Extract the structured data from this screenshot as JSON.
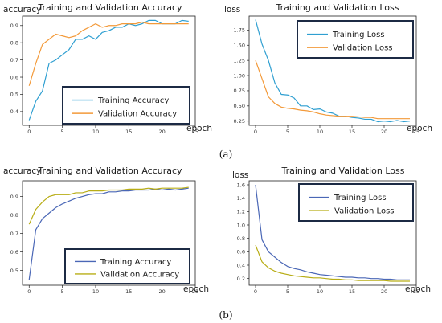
{
  "colors": {
    "fig_a_train": "#2f9fd1",
    "fig_a_val": "#f39a3a",
    "fig_b_train": "#4a67b6",
    "fig_b_val": "#b8ad16",
    "legend_border": "#1c2a44"
  },
  "captions": [
    "(a)",
    "(b)"
  ],
  "chart_data": [
    {
      "id": "a-acc",
      "type": "line",
      "title": "Training and Validation Accuracy",
      "ylabel": "accuracy",
      "xlabel": "epoch",
      "xlim": [
        -1,
        25
      ],
      "ylim": [
        0.32,
        0.955
      ],
      "xticks": [
        0,
        5,
        10,
        15,
        20,
        25
      ],
      "yticks": [
        0.4,
        0.5,
        0.6,
        0.7,
        0.8,
        0.9
      ],
      "ytick_labels": [
        "0.4",
        "0.5",
        "0.6",
        "0.7",
        "0.8",
        "0.9"
      ],
      "legend_position": "bottom-right",
      "x": [
        0,
        1,
        2,
        3,
        4,
        5,
        6,
        7,
        8,
        9,
        10,
        11,
        12,
        13,
        14,
        15,
        16,
        17,
        18,
        19,
        20,
        21,
        22,
        23,
        24
      ],
      "series": [
        {
          "name": "Training Accuracy",
          "color_key": "fig_a_train",
          "values": [
            0.35,
            0.46,
            0.52,
            0.68,
            0.7,
            0.73,
            0.76,
            0.82,
            0.82,
            0.84,
            0.82,
            0.86,
            0.87,
            0.89,
            0.89,
            0.91,
            0.9,
            0.91,
            0.93,
            0.93,
            0.91,
            0.91,
            0.91,
            0.93,
            0.925
          ]
        },
        {
          "name": "Validation Accuracy",
          "color_key": "fig_a_val",
          "values": [
            0.55,
            0.68,
            0.79,
            0.82,
            0.85,
            0.84,
            0.83,
            0.84,
            0.87,
            0.89,
            0.91,
            0.89,
            0.9,
            0.9,
            0.91,
            0.91,
            0.91,
            0.92,
            0.91,
            0.91,
            0.91,
            0.91,
            0.91,
            0.91,
            0.91
          ]
        }
      ]
    },
    {
      "id": "a-loss",
      "type": "line",
      "title": "Training and Validation Loss",
      "ylabel": "loss",
      "xlabel": "epoch",
      "xlim": [
        -1,
        25
      ],
      "ylim": [
        0.18,
        1.98
      ],
      "xticks": [
        0,
        5,
        10,
        15,
        20,
        25
      ],
      "yticks": [
        0.25,
        0.5,
        0.75,
        1.0,
        1.25,
        1.5,
        1.75
      ],
      "ytick_labels": [
        "0.25",
        "0.50",
        "0.75",
        "1.00",
        "1.25",
        "1.50",
        "1.75"
      ],
      "legend_position": "top-right",
      "x": [
        0,
        1,
        2,
        3,
        4,
        5,
        6,
        7,
        8,
        9,
        10,
        11,
        12,
        13,
        14,
        15,
        16,
        17,
        18,
        19,
        20,
        21,
        22,
        23,
        24
      ],
      "series": [
        {
          "name": "Training Loss",
          "color_key": "fig_a_train",
          "values": [
            1.92,
            1.52,
            1.25,
            0.88,
            0.69,
            0.68,
            0.63,
            0.5,
            0.5,
            0.44,
            0.45,
            0.4,
            0.38,
            0.33,
            0.33,
            0.31,
            0.3,
            0.28,
            0.28,
            0.24,
            0.25,
            0.24,
            0.26,
            0.24,
            0.25
          ]
        },
        {
          "name": "Validation Loss",
          "color_key": "fig_a_val",
          "values": [
            1.25,
            0.95,
            0.65,
            0.54,
            0.48,
            0.46,
            0.45,
            0.43,
            0.42,
            0.4,
            0.37,
            0.35,
            0.34,
            0.33,
            0.33,
            0.33,
            0.32,
            0.31,
            0.31,
            0.29,
            0.29,
            0.29,
            0.29,
            0.29,
            0.29
          ]
        }
      ]
    },
    {
      "id": "b-acc",
      "type": "line",
      "title": "Training and Validation Accuracy",
      "ylabel": "accuracy",
      "xlabel": "epoch",
      "xlim": [
        -1,
        25
      ],
      "ylim": [
        0.42,
        0.985
      ],
      "xticks": [
        0,
        5,
        10,
        15,
        20,
        25
      ],
      "yticks": [
        0.5,
        0.6,
        0.7,
        0.8,
        0.9
      ],
      "ytick_labels": [
        "0.5",
        "0.6",
        "0.7",
        "0.8",
        "0.9"
      ],
      "legend_position": "bottom-right",
      "x": [
        0,
        1,
        2,
        3,
        4,
        5,
        6,
        7,
        8,
        9,
        10,
        11,
        12,
        13,
        14,
        15,
        16,
        17,
        18,
        19,
        20,
        21,
        22,
        23,
        24
      ],
      "series": [
        {
          "name": "Training Accuracy",
          "color_key": "fig_b_train",
          "values": [
            0.45,
            0.72,
            0.78,
            0.81,
            0.84,
            0.86,
            0.875,
            0.89,
            0.9,
            0.91,
            0.915,
            0.915,
            0.925,
            0.925,
            0.93,
            0.93,
            0.935,
            0.935,
            0.935,
            0.94,
            0.935,
            0.94,
            0.935,
            0.94,
            0.945
          ]
        },
        {
          "name": "Validation Accuracy",
          "color_key": "fig_b_val",
          "values": [
            0.75,
            0.83,
            0.87,
            0.9,
            0.91,
            0.91,
            0.91,
            0.92,
            0.92,
            0.93,
            0.93,
            0.93,
            0.935,
            0.935,
            0.935,
            0.94,
            0.94,
            0.94,
            0.945,
            0.94,
            0.945,
            0.945,
            0.945,
            0.945,
            0.95
          ]
        }
      ]
    },
    {
      "id": "b-loss",
      "type": "line",
      "title": "Training and Validation Loss",
      "ylabel": "loss",
      "xlabel": "epoch",
      "xlim": [
        -1,
        25
      ],
      "ylim": [
        0.1,
        1.66
      ],
      "xticks": [
        0,
        5,
        10,
        15,
        20,
        25
      ],
      "yticks": [
        0.2,
        0.4,
        0.6,
        0.8,
        1.0,
        1.2,
        1.4,
        1.6
      ],
      "ytick_labels": [
        "0.2",
        "0.4",
        "0.6",
        "0.8",
        "1.0",
        "1.2",
        "1.4",
        "1.6"
      ],
      "legend_position": "top-right",
      "x": [
        0,
        1,
        2,
        3,
        4,
        5,
        6,
        7,
        8,
        9,
        10,
        11,
        12,
        13,
        14,
        15,
        16,
        17,
        18,
        19,
        20,
        21,
        22,
        23,
        24
      ],
      "series": [
        {
          "name": "Training Loss",
          "color_key": "fig_b_train",
          "values": [
            1.6,
            0.78,
            0.6,
            0.52,
            0.44,
            0.38,
            0.35,
            0.33,
            0.3,
            0.28,
            0.26,
            0.25,
            0.24,
            0.23,
            0.22,
            0.22,
            0.21,
            0.21,
            0.2,
            0.2,
            0.19,
            0.19,
            0.18,
            0.18,
            0.18
          ]
        },
        {
          "name": "Validation Loss",
          "color_key": "fig_b_val",
          "values": [
            0.7,
            0.45,
            0.36,
            0.31,
            0.28,
            0.26,
            0.24,
            0.23,
            0.22,
            0.21,
            0.21,
            0.2,
            0.19,
            0.19,
            0.18,
            0.18,
            0.17,
            0.17,
            0.17,
            0.17,
            0.17,
            0.16,
            0.16,
            0.16,
            0.16
          ]
        }
      ]
    }
  ]
}
